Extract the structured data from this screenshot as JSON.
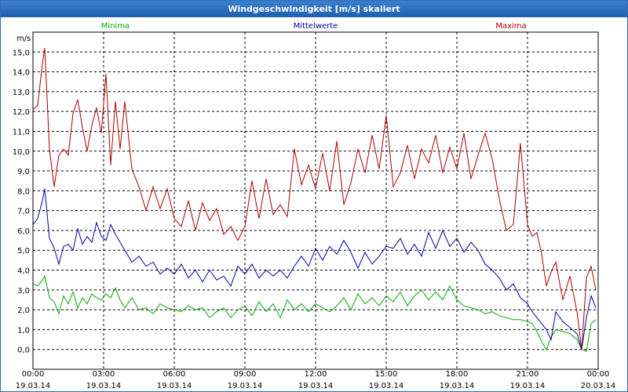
{
  "chart_data": {
    "type": "line",
    "title": "Windgeschwindigkeit [m/s] skaliert",
    "ylabel": "m/s",
    "xlabel": "",
    "ylim": [
      -1,
      16
    ],
    "xlim": [
      0,
      24
    ],
    "grid": true,
    "legend_position": "top",
    "y_ticks": [
      "0,0",
      "1,0",
      "2,0",
      "3,0",
      "4,0",
      "5,0",
      "6,0",
      "7,0",
      "8,0",
      "9,0",
      "10,0",
      "11,0",
      "12,0",
      "13,0",
      "14,0",
      "15,0"
    ],
    "y_tick_values": [
      0,
      1,
      2,
      3,
      4,
      5,
      6,
      7,
      8,
      9,
      10,
      11,
      12,
      13,
      14,
      15
    ],
    "x_ticks": [
      {
        "time": "00:00",
        "date": "19.03.14"
      },
      {
        "time": "03:00",
        "date": "19.03.14"
      },
      {
        "time": "06:00",
        "date": "19.03.14"
      },
      {
        "time": "09:00",
        "date": "19.03.14"
      },
      {
        "time": "12:00",
        "date": "19.03.14"
      },
      {
        "time": "15:00",
        "date": "19.03.14"
      },
      {
        "time": "18:00",
        "date": "19.03.14"
      },
      {
        "time": "21:00",
        "date": "19.03.14"
      },
      {
        "time": "00:00",
        "date": "20.03.14"
      }
    ],
    "x_tick_values": [
      0,
      3,
      6,
      9,
      12,
      15,
      18,
      21,
      24
    ],
    "series": [
      {
        "name": "Minima",
        "color": "#00aa00",
        "x": [
          0,
          0.2,
          0.4,
          0.5,
          0.7,
          0.9,
          1.1,
          1.3,
          1.5,
          1.7,
          1.9,
          2.1,
          2.3,
          2.5,
          2.7,
          2.9,
          3.1,
          3.3,
          3.5,
          3.7,
          3.9,
          4.2,
          4.5,
          4.8,
          5.1,
          5.4,
          5.7,
          6.0,
          6.3,
          6.6,
          6.9,
          7.2,
          7.5,
          7.8,
          8.1,
          8.4,
          8.7,
          9.0,
          9.3,
          9.6,
          9.9,
          10.2,
          10.5,
          10.8,
          11.1,
          11.4,
          11.7,
          12.0,
          12.3,
          12.6,
          12.9,
          13.2,
          13.5,
          13.8,
          14.1,
          14.4,
          14.7,
          15.0,
          15.3,
          15.6,
          15.9,
          16.2,
          16.5,
          16.8,
          17.1,
          17.4,
          17.7,
          18.0,
          18.3,
          18.6,
          18.9,
          19.2,
          19.5,
          19.8,
          20.1,
          20.4,
          20.7,
          21.0,
          21.2,
          21.4,
          21.6,
          21.8,
          22.0,
          22.2,
          22.5,
          22.8,
          23.1,
          23.3,
          23.5,
          23.7,
          23.9
        ],
        "values": [
          3.3,
          3.2,
          3.5,
          3.7,
          2.6,
          2.4,
          1.8,
          2.7,
          2.3,
          2.9,
          2.1,
          2.6,
          2.3,
          2.8,
          2.6,
          2.5,
          2.8,
          2.6,
          3.1,
          2.5,
          2.1,
          2.6,
          2.0,
          2.1,
          1.8,
          2.3,
          2.1,
          2.0,
          1.9,
          2.2,
          2.0,
          2.1,
          1.6,
          1.9,
          2.1,
          1.6,
          2.0,
          2.2,
          1.7,
          2.4,
          1.9,
          2.3,
          1.6,
          2.5,
          2.0,
          2.3,
          1.9,
          2.3,
          2.1,
          1.9,
          2.2,
          2.6,
          2.0,
          2.8,
          2.3,
          2.6,
          2.2,
          2.7,
          2.4,
          2.9,
          2.2,
          2.7,
          3.0,
          2.5,
          2.9,
          2.5,
          3.2,
          2.5,
          2.2,
          2.1,
          2.0,
          1.8,
          1.9,
          1.7,
          1.6,
          1.5,
          1.5,
          1.4,
          1.3,
          0.9,
          0.4,
          0.0,
          0.6,
          1.0,
          0.9,
          0.8,
          0.5,
          0.0,
          -0.1,
          1.3,
          1.5
        ]
      },
      {
        "name": "Mittelwerte",
        "color": "#0000aa",
        "x": [
          0,
          0.2,
          0.4,
          0.5,
          0.7,
          0.9,
          1.1,
          1.3,
          1.5,
          1.7,
          1.9,
          2.1,
          2.3,
          2.5,
          2.7,
          2.9,
          3.1,
          3.3,
          3.5,
          3.7,
          3.9,
          4.2,
          4.5,
          4.8,
          5.1,
          5.4,
          5.7,
          6.0,
          6.3,
          6.6,
          6.9,
          7.2,
          7.5,
          7.8,
          8.1,
          8.4,
          8.7,
          9.0,
          9.3,
          9.6,
          9.9,
          10.2,
          10.5,
          10.8,
          11.1,
          11.4,
          11.7,
          12.0,
          12.3,
          12.6,
          12.9,
          13.2,
          13.5,
          13.8,
          14.1,
          14.4,
          14.7,
          15.0,
          15.3,
          15.6,
          15.9,
          16.2,
          16.5,
          16.8,
          17.1,
          17.4,
          17.7,
          18.0,
          18.3,
          18.6,
          18.9,
          19.2,
          19.5,
          19.8,
          20.1,
          20.4,
          20.7,
          21.0,
          21.2,
          21.4,
          21.6,
          21.8,
          22.0,
          22.2,
          22.5,
          22.8,
          23.1,
          23.3,
          23.5,
          23.7,
          23.9
        ],
        "values": [
          6.3,
          6.6,
          7.5,
          8.1,
          5.6,
          5.1,
          4.3,
          5.2,
          5.3,
          5.0,
          6.1,
          5.3,
          5.7,
          5.4,
          6.4,
          5.7,
          5.5,
          6.3,
          5.8,
          5.4,
          5.0,
          4.4,
          4.7,
          4.2,
          4.4,
          3.8,
          4.1,
          3.8,
          4.3,
          3.6,
          4.0,
          3.4,
          4.0,
          3.5,
          3.7,
          3.2,
          4.2,
          3.8,
          4.3,
          3.6,
          4.0,
          3.7,
          4.0,
          3.6,
          4.2,
          4.7,
          4.2,
          5.1,
          4.5,
          5.2,
          4.8,
          5.5,
          4.9,
          4.1,
          4.9,
          4.3,
          4.7,
          5.2,
          5.1,
          5.6,
          4.8,
          5.3,
          4.7,
          5.9,
          5.1,
          6.0,
          5.2,
          5.6,
          4.9,
          5.4,
          5.0,
          4.3,
          4.0,
          3.6,
          3.0,
          3.3,
          2.6,
          2.3,
          1.9,
          1.6,
          1.3,
          1.0,
          0.5,
          1.9,
          1.4,
          1.1,
          0.8,
          0.0,
          1.6,
          2.7,
          2.1
        ]
      },
      {
        "name": "Maxima",
        "color": "#aa0000",
        "x": [
          0,
          0.2,
          0.4,
          0.5,
          0.7,
          0.9,
          1.1,
          1.3,
          1.5,
          1.7,
          1.9,
          2.1,
          2.3,
          2.5,
          2.7,
          2.9,
          3.1,
          3.3,
          3.5,
          3.7,
          3.9,
          4.2,
          4.5,
          4.8,
          5.1,
          5.4,
          5.7,
          6.0,
          6.3,
          6.6,
          6.9,
          7.2,
          7.5,
          7.8,
          8.1,
          8.4,
          8.7,
          9.0,
          9.3,
          9.6,
          9.9,
          10.2,
          10.5,
          10.8,
          11.1,
          11.4,
          11.7,
          12.0,
          12.3,
          12.6,
          12.9,
          13.2,
          13.5,
          13.8,
          14.1,
          14.4,
          14.7,
          15.0,
          15.3,
          15.6,
          15.9,
          16.2,
          16.5,
          16.8,
          17.1,
          17.4,
          17.7,
          18.0,
          18.3,
          18.6,
          18.9,
          19.2,
          19.5,
          19.8,
          20.1,
          20.4,
          20.7,
          21.0,
          21.2,
          21.4,
          21.6,
          21.8,
          22.0,
          22.2,
          22.5,
          22.8,
          23.1,
          23.3,
          23.5,
          23.7,
          23.9
        ],
        "values": [
          12.1,
          12.3,
          14.4,
          15.2,
          10.1,
          8.2,
          9.8,
          10.1,
          9.8,
          11.9,
          12.6,
          11.2,
          10.0,
          11.3,
          12.2,
          10.9,
          13.9,
          9.3,
          12.5,
          10.1,
          12.5,
          9.1,
          8.2,
          7.0,
          8.2,
          7.1,
          8.1,
          6.6,
          6.2,
          7.5,
          6.0,
          7.4,
          6.5,
          7.1,
          5.8,
          6.2,
          5.5,
          6.2,
          8.5,
          6.6,
          8.6,
          6.8,
          7.3,
          6.7,
          10.1,
          8.3,
          9.3,
          8.1,
          9.9,
          8.0,
          10.5,
          7.3,
          8.4,
          10.1,
          8.9,
          10.8,
          9.1,
          11.8,
          8.2,
          8.9,
          10.3,
          8.6,
          10.1,
          9.4,
          10.8,
          8.9,
          10.2,
          9.1,
          10.9,
          8.6,
          9.8,
          10.9,
          9.6,
          7.6,
          6.0,
          6.3,
          10.4,
          6.3,
          5.7,
          5.9,
          4.8,
          3.2,
          3.9,
          4.4,
          2.5,
          3.7,
          1.9,
          0.0,
          3.6,
          4.2,
          3.0
        ]
      }
    ]
  }
}
